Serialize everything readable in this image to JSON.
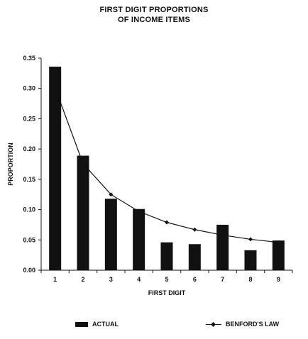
{
  "chart_data": {
    "type": "bar",
    "title_lines": [
      "FIRST DIGIT PROPORTIONS",
      "OF INCOME ITEMS"
    ],
    "xlabel": "FIRST DIGIT",
    "ylabel": "PROPORTION",
    "categories": [
      "1",
      "2",
      "3",
      "4",
      "5",
      "6",
      "7",
      "8",
      "9"
    ],
    "ylim": [
      0,
      0.35
    ],
    "yticks": [
      "0.00",
      "0.05",
      "0.10",
      "0.15",
      "0.20",
      "0.25",
      "0.30",
      "0.35"
    ],
    "ytick_values": [
      0,
      0.05,
      0.1,
      0.15,
      0.2,
      0.25,
      0.3,
      0.35
    ],
    "series": [
      {
        "name": "ACTUAL",
        "kind": "bar",
        "color": "#111111",
        "values": [
          0.336,
          0.189,
          0.118,
          0.101,
          0.046,
          0.043,
          0.075,
          0.033,
          0.049
        ]
      },
      {
        "name": "BENFORD'S LAW",
        "kind": "line",
        "marker": "diamond",
        "color": "#111111",
        "values": [
          0.301,
          0.176,
          0.125,
          0.097,
          0.079,
          0.067,
          0.058,
          0.051,
          0.046
        ]
      }
    ],
    "legend_position": "bottom",
    "grid": false
  }
}
